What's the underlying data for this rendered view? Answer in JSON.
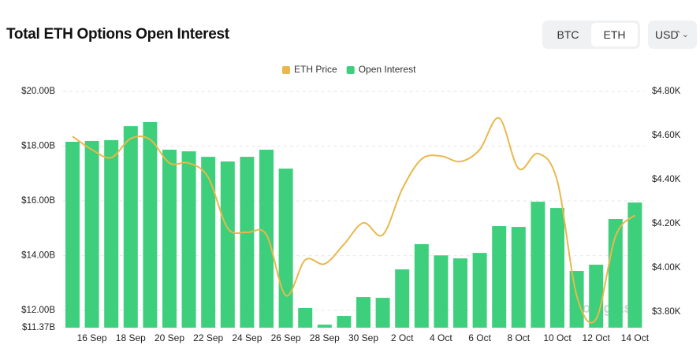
{
  "controls": {
    "assets": [
      "BTC",
      "ETH"
    ],
    "active_asset": "ETH",
    "currency": "USD"
  },
  "chart_data": {
    "type": "bar-line",
    "title": "Total ETH Options Open Interest",
    "watermark": "coinglass",
    "categories": [
      null,
      "16 Sep",
      null,
      "18 Sep",
      null,
      "20 Sep",
      null,
      "22 Sep",
      null,
      "24 Sep",
      null,
      "26 Sep",
      null,
      "28 Sep",
      null,
      "30 Sep",
      null,
      "2 Oct",
      null,
      "4 Oct",
      null,
      "6 Oct",
      null,
      "8 Oct",
      null,
      "10 Oct",
      null,
      "12 Oct",
      null,
      "14 Oct"
    ],
    "series": [
      {
        "name": "ETH Price",
        "type": "line",
        "axis": "y2",
        "color": "#e8b84b",
        "values": [
          4.596,
          4.536,
          4.5,
          4.586,
          4.582,
          4.475,
          4.475,
          4.41,
          4.18,
          4.161,
          4.15,
          3.875,
          4.036,
          4.018,
          4.107,
          4.204,
          4.15,
          4.357,
          4.493,
          4.507,
          4.482,
          4.536,
          4.679,
          4.45,
          4.518,
          4.393,
          3.875,
          3.768,
          4.143,
          4.239
        ]
      },
      {
        "name": "Open Interest",
        "type": "bar",
        "color": "#3ecf7c",
        "values": [
          18.16,
          18.19,
          18.22,
          18.73,
          18.88,
          17.87,
          17.81,
          17.61,
          17.44,
          17.61,
          17.87,
          17.18,
          12.09,
          11.48,
          11.8,
          12.49,
          12.46,
          13.5,
          14.42,
          14.01,
          13.9,
          14.1,
          15.08,
          15.05,
          15.97,
          15.74,
          13.44,
          13.67,
          15.34,
          15.94
        ]
      }
    ],
    "ylim": [
      11.37,
      20
    ],
    "yticks": [
      {
        "value": 11.37,
        "label": "$11.37B"
      },
      {
        "value": 12,
        "label": "$12.00B"
      },
      {
        "value": 14,
        "label": "$14.00B"
      },
      {
        "value": 16,
        "label": "$16.00B"
      },
      {
        "value": 18,
        "label": "$18.00B"
      },
      {
        "value": 20,
        "label": "$20.00B"
      }
    ],
    "y2lim": [
      3.729,
      4.8
    ],
    "y2ticks": [
      {
        "value": 3.8,
        "label": "$3.80K"
      },
      {
        "value": 4.0,
        "label": "$4.00K"
      },
      {
        "value": 4.2,
        "label": "$4.20K"
      },
      {
        "value": 4.4,
        "label": "$4.40K"
      },
      {
        "value": 4.6,
        "label": "$4.60K"
      },
      {
        "value": 4.8,
        "label": "$4.80K"
      }
    ],
    "grid": true
  }
}
